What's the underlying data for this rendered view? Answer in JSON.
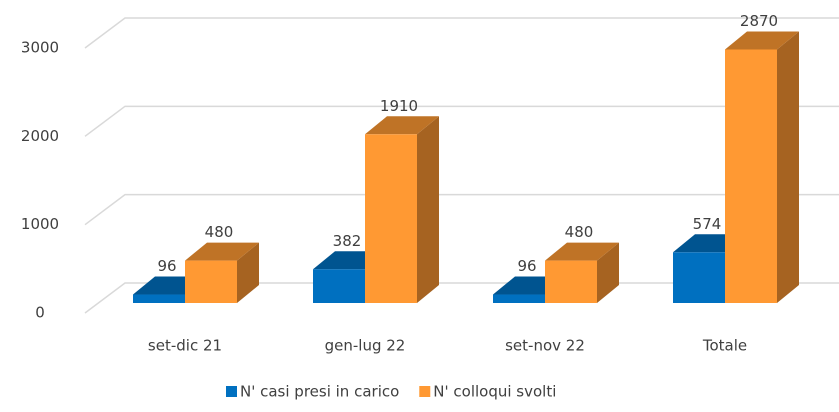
{
  "chart_data": {
    "type": "bar",
    "categories": [
      "set-dic 21",
      "gen-lug 22",
      "set-nov 22",
      "Totale"
    ],
    "series": [
      {
        "name": "N' casi presi in carico",
        "color": "#0070c0",
        "values": [
          96,
          382,
          96,
          574
        ]
      },
      {
        "name": "N' colloqui svolti",
        "color": "#ff9933",
        "values": [
          480,
          1910,
          480,
          2870
        ]
      }
    ],
    "ylim": [
      0,
      3000
    ],
    "yticks": [
      0,
      1000,
      2000,
      3000
    ],
    "grid": true,
    "legend": "bottom"
  }
}
